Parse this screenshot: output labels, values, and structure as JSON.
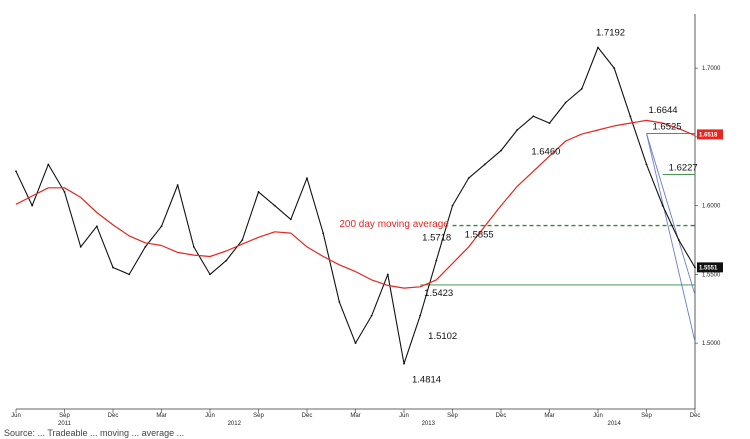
{
  "chart_data": {
    "type": "line",
    "series": [
      {
        "kind": "price",
        "color": "#111111",
        "x": [
          "2011-06",
          "2011-07",
          "2011-08",
          "2011-09",
          "2011-10",
          "2011-11",
          "2011-12",
          "2012-01",
          "2012-02",
          "2012-03",
          "2012-04",
          "2012-05",
          "2012-06",
          "2012-07",
          "2012-08",
          "2012-09",
          "2012-10",
          "2012-11",
          "2012-12",
          "2013-01",
          "2013-02",
          "2013-03",
          "2013-04",
          "2013-05",
          "2013-06",
          "2013-07",
          "2013-08",
          "2013-09",
          "2013-10",
          "2013-11",
          "2013-12",
          "2014-01",
          "2014-02",
          "2014-03",
          "2014-04",
          "2014-05",
          "2014-06",
          "2014-07",
          "2014-08",
          "2014-09",
          "2014-10",
          "2014-11",
          "2014-12"
        ],
        "values": [
          1.625,
          1.6,
          1.63,
          1.61,
          1.57,
          1.585,
          1.555,
          1.55,
          1.57,
          1.585,
          1.615,
          1.57,
          1.55,
          1.56,
          1.575,
          1.61,
          1.6,
          1.59,
          1.62,
          1.58,
          1.53,
          1.5,
          1.52,
          1.55,
          1.485,
          1.52,
          1.56,
          1.6,
          1.62,
          1.63,
          1.64,
          1.655,
          1.665,
          1.66,
          1.675,
          1.685,
          1.715,
          1.7,
          1.665,
          1.63,
          1.6,
          1.575,
          1.555
        ]
      },
      {
        "name": "200 day moving average",
        "kind": "ma",
        "color": "#e8251f",
        "x": [
          "2011-06",
          "2011-07",
          "2011-08",
          "2011-09",
          "2011-10",
          "2011-11",
          "2011-12",
          "2012-01",
          "2012-02",
          "2012-03",
          "2012-04",
          "2012-05",
          "2012-06",
          "2012-07",
          "2012-08",
          "2012-09",
          "2012-10",
          "2012-11",
          "2012-12",
          "2013-01",
          "2013-02",
          "2013-03",
          "2013-04",
          "2013-05",
          "2013-06",
          "2013-07",
          "2013-08",
          "2013-09",
          "2013-10",
          "2013-11",
          "2013-12",
          "2014-01",
          "2014-02",
          "2014-03",
          "2014-04",
          "2014-05",
          "2014-06",
          "2014-07",
          "2014-08",
          "2014-09",
          "2014-10",
          "2014-11",
          "2014-12"
        ],
        "values": [
          1.601,
          1.607,
          1.613,
          1.613,
          1.606,
          1.595,
          1.586,
          1.578,
          1.573,
          1.571,
          1.566,
          1.564,
          1.563,
          1.567,
          1.572,
          1.577,
          1.581,
          1.58,
          1.57,
          1.563,
          1.557,
          1.552,
          1.546,
          1.542,
          1.54,
          1.541,
          1.546,
          1.558,
          1.57,
          1.585,
          1.6,
          1.614,
          1.625,
          1.636,
          1.647,
          1.652,
          1.655,
          1.658,
          1.66,
          1.662,
          1.66,
          1.656,
          1.651
        ]
      }
    ],
    "x_axis": {
      "month_labels": [
        "Jun",
        "Sep",
        "Dec",
        "Mar",
        "Jun",
        "Sep",
        "Dec",
        "Mar",
        "Jun",
        "Sep",
        "Dec",
        "Mar",
        "Jun",
        "Sep",
        "Dec"
      ],
      "year_labels": [
        "2011",
        "2012",
        "2013",
        "2014"
      ],
      "range": [
        "2011-06",
        "2014-12"
      ]
    },
    "y_axis": {
      "ticks": [
        "1.7000",
        "1.6500",
        "1.6000",
        "1.5500",
        "1.5000"
      ],
      "range": [
        1.455,
        1.735
      ],
      "side": "right"
    },
    "price_tags": [
      {
        "text": "1.6518",
        "bg": "#e8251f",
        "fg": "#ffffff",
        "value": 1.6518
      },
      {
        "text": "1.5551",
        "bg": "#111111",
        "fg": "#ffffff",
        "value": 1.5551
      }
    ],
    "annotations": [
      {
        "text": "1.7192",
        "x": "2014-06",
        "y": 1.7192
      },
      {
        "text": "1.6644",
        "x": "2014-09",
        "y": 1.6644
      },
      {
        "text": "1.6525",
        "x": "2014-09",
        "y": 1.6525
      },
      {
        "text": "1.6460",
        "x": "2014-02",
        "y": 1.646
      },
      {
        "text": "1.6227",
        "x": "2014-10",
        "y": 1.6227
      },
      {
        "text": "1.5855",
        "x": "2013-10",
        "y": 1.5855
      },
      {
        "text": "1.5718",
        "x": "2013-07",
        "y": 1.5718
      },
      {
        "text": "1.5423",
        "x": "2013-07",
        "y": 1.5423
      },
      {
        "text": "1.5102",
        "x": "2013-07",
        "y": 1.5102
      },
      {
        "text": "1.4814",
        "x": "2013-06",
        "y": 1.4814
      }
    ],
    "ma_label": "200 day moving average",
    "horizontal_lines": [
      {
        "value": 1.6525,
        "from": "2014-09",
        "style": "solid",
        "color": "#2e8b3a"
      },
      {
        "value": 1.6227,
        "from": "2014-10",
        "style": "solid",
        "color": "#2e8b3a"
      },
      {
        "value": 1.5855,
        "from": "2013-09",
        "style": "dashed",
        "color": "#2e8b3a"
      },
      {
        "value": 1.5423,
        "from": "2013-07",
        "style": "solid",
        "color": "#2e8b3a"
      }
    ],
    "trend_lines": [
      {
        "from": [
          "2014-09",
          1.6525
        ],
        "to": [
          "2014-12",
          1.5351
        ],
        "color": "#6a7fc8"
      },
      {
        "from": [
          "2014-09",
          1.6525
        ],
        "to": [
          "2014-12",
          1.501
        ],
        "color": "#6a7fc8"
      }
    ],
    "grid": false
  },
  "source_text": "Source: ... Tradeable ... moving ... average ..."
}
